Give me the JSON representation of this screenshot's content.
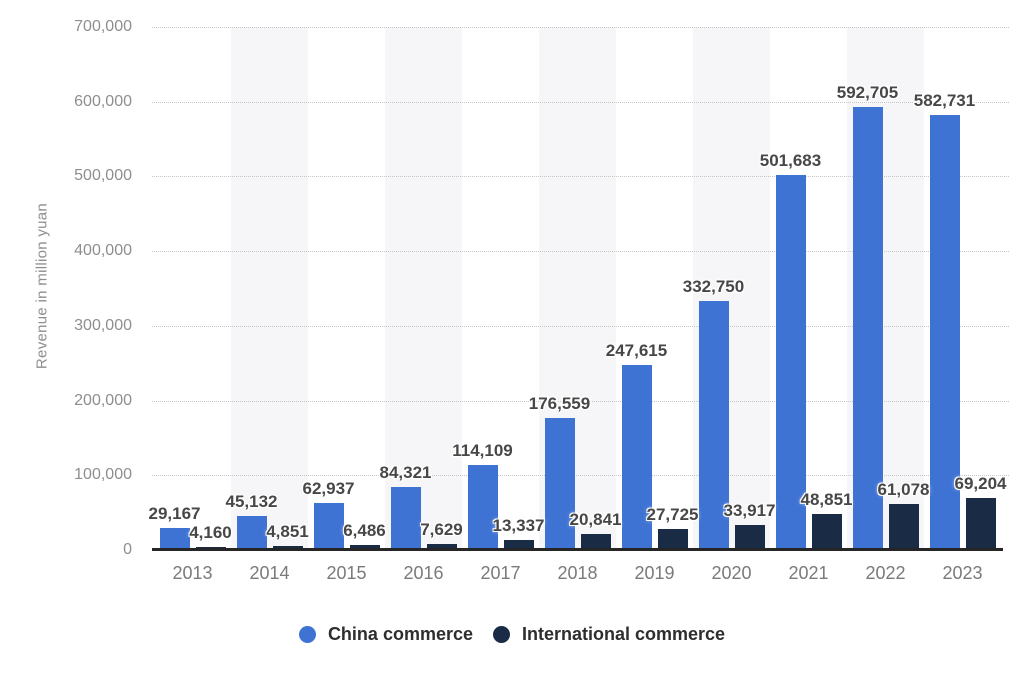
{
  "chart_data": {
    "type": "bar",
    "title": "",
    "ylabel": "Revenue in million yuan",
    "categories": [
      "2013",
      "2014",
      "2015",
      "2016",
      "2017",
      "2018",
      "2019",
      "2020",
      "2021",
      "2022",
      "2023"
    ],
    "series": [
      {
        "name": "China commerce",
        "color": "#3e73d4",
        "values": [
          29167,
          45132,
          62937,
          84321,
          114109,
          176559,
          247615,
          332750,
          501683,
          592705,
          582731
        ]
      },
      {
        "name": "International commerce",
        "color": "#1a2b45",
        "values": [
          4160,
          4851,
          6486,
          7629,
          13337,
          20841,
          27725,
          33917,
          48851,
          61078,
          69204
        ]
      }
    ],
    "ylim": [
      0,
      700000
    ],
    "ytick_interval": 100000,
    "ytick_labels": [
      "0",
      "100,000",
      "200,000",
      "300,000",
      "400,000",
      "500,000",
      "600,000",
      "700,000"
    ],
    "grid": "horizontal-dotted",
    "value_labels": true,
    "legend_position": "bottom"
  },
  "colors": {
    "background": "#ffffff",
    "column_band": "#f6f6f8",
    "gridline": "#c6c6c6",
    "axis_line": "#262626",
    "value_label": "#474747",
    "year_label": "#7a7a7a",
    "ytick_label": "#8e8e8e",
    "legend_text": "#2e2e2e"
  }
}
